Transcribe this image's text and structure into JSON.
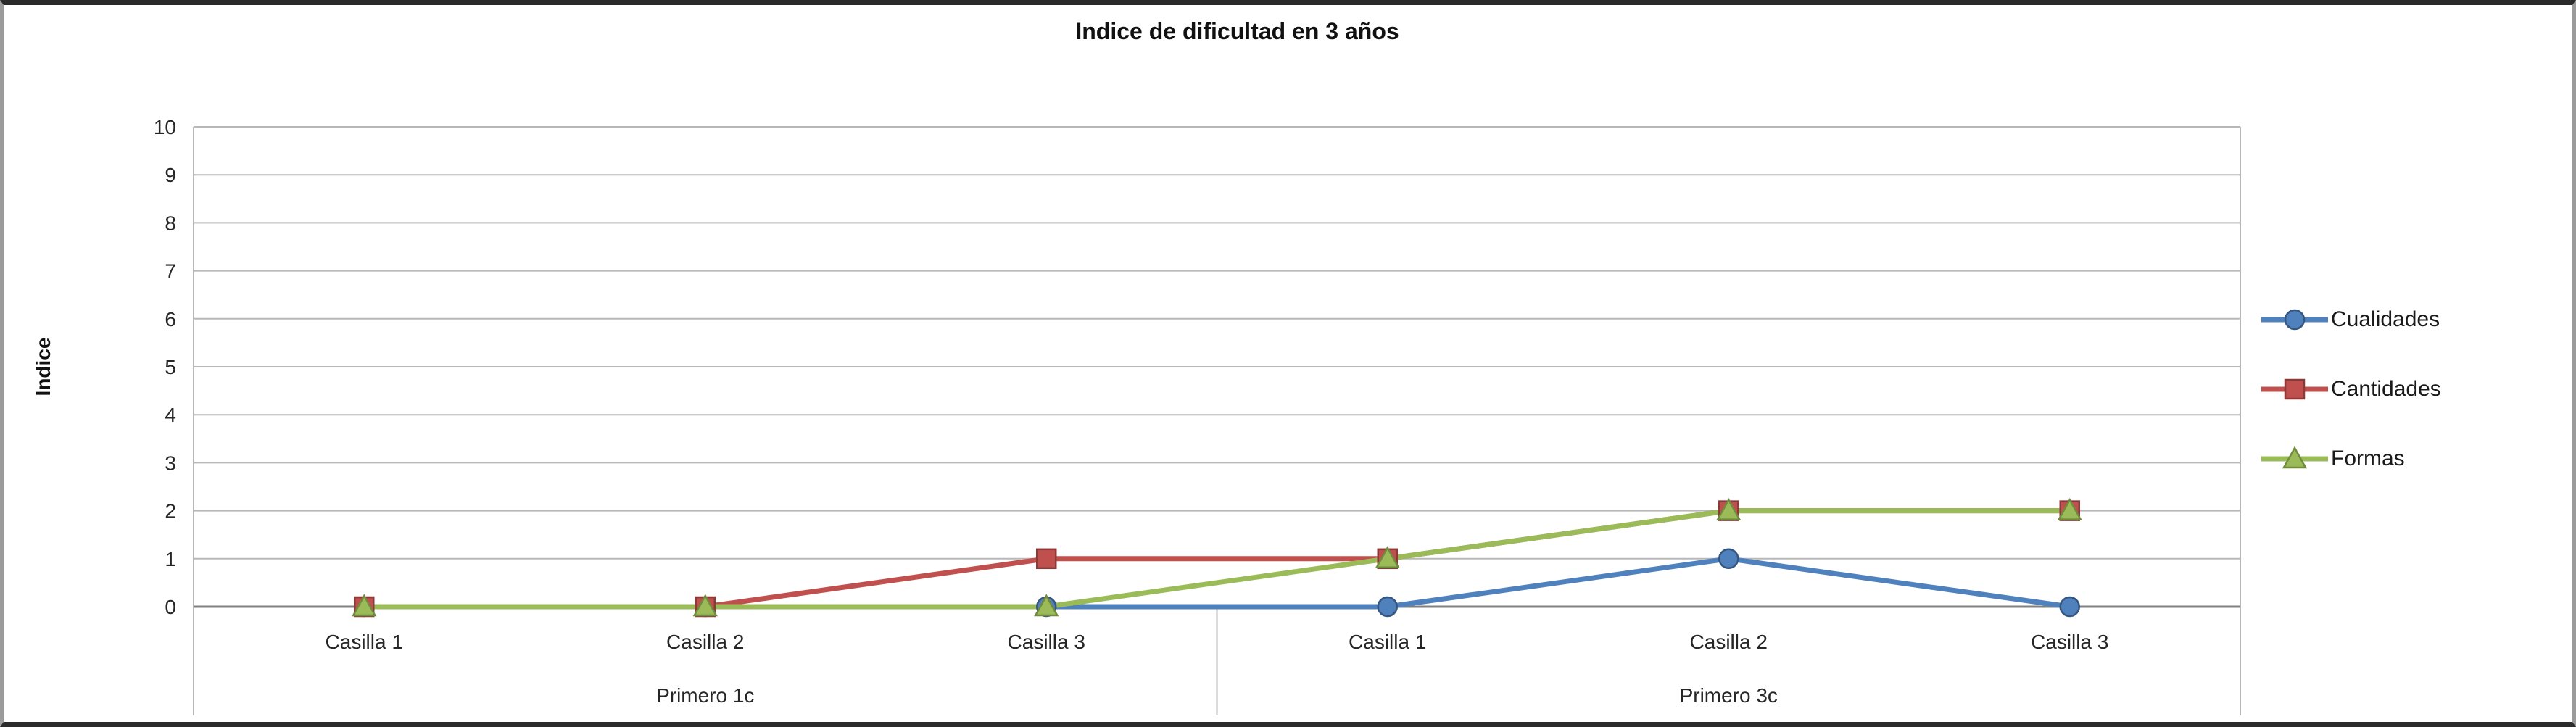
{
  "chart_data": {
    "type": "line",
    "title": "Indice de dificultad en 3 años",
    "ylabel": "Indice",
    "xlabel": "",
    "ylim": [
      0,
      10
    ],
    "ytick_step": 1,
    "grid": true,
    "legend_position": "right",
    "categories": [
      "Casilla 1",
      "Casilla 2",
      "Casilla 3",
      "Casilla 1",
      "Casilla 2",
      "Casilla 3"
    ],
    "category_groups": [
      {
        "label": "Primero 1c",
        "start": 0,
        "end": 2
      },
      {
        "label": "Primero 3c",
        "start": 3,
        "end": 5
      }
    ],
    "series": [
      {
        "name": "Cualidades",
        "color": "#4F81BD",
        "stroke": "#35567f",
        "marker": "circle",
        "values": [
          0,
          0,
          0,
          0,
          1,
          0
        ]
      },
      {
        "name": "Cantidades",
        "color": "#C0504D",
        "stroke": "#8c3a38",
        "marker": "square",
        "values": [
          0,
          0,
          1,
          1,
          2,
          2
        ]
      },
      {
        "name": "Formas",
        "color": "#9BBB59",
        "stroke": "#728a3e",
        "marker": "triangle",
        "values": [
          0,
          0,
          0,
          1,
          2,
          2
        ]
      }
    ],
    "colors": {
      "gridline": "#b8b8b8",
      "axis_line": "#808080",
      "text": "#262626"
    }
  }
}
